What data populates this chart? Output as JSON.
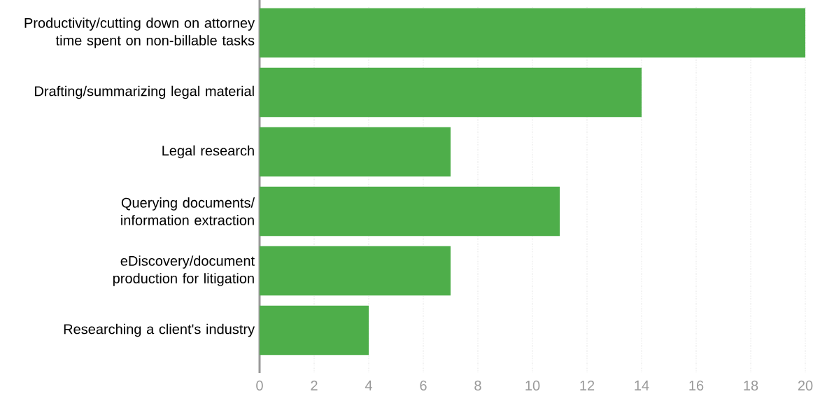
{
  "chart_data": {
    "type": "bar",
    "orientation": "horizontal",
    "categories": [
      "Productivity/cutting down on attorney time spent on non-billable tasks",
      "Drafting/summarizing legal material",
      "Legal research",
      "Querying documents/ information extraction",
      "eDiscovery/document production for litigation",
      "Researching a client's industry"
    ],
    "values": [
      20,
      14,
      7,
      11,
      7,
      4
    ],
    "color": "#4eae4a",
    "xlim": [
      0,
      20
    ],
    "xticks": [
      0,
      2,
      4,
      6,
      8,
      10,
      12,
      14,
      16,
      18,
      20
    ],
    "grid": "x"
  }
}
